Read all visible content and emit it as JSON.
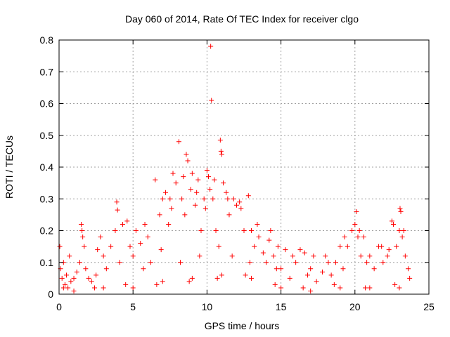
{
  "chart_data": {
    "type": "scatter",
    "title": "Day 060 of 2014, Rate Of TEC Index for receiver clgo",
    "xlabel": "GPS time / hours",
    "ylabel": "ROTI / TECUs",
    "xlim": [
      0,
      25
    ],
    "ylim": [
      0,
      0.8
    ],
    "xticks": [
      0,
      5,
      10,
      15,
      20,
      25
    ],
    "xtick_labels": [
      "0",
      "5",
      "10",
      "15",
      "20",
      "25"
    ],
    "yticks": [
      0,
      0.1,
      0.2,
      0.3,
      0.4,
      0.5,
      0.6,
      0.7,
      0.8
    ],
    "ytick_labels": [
      "0",
      "0.1",
      "0.2",
      "0.3",
      "0.4",
      "0.5",
      "0.6",
      "0.7",
      "0.8"
    ],
    "grid": true,
    "marker": "+",
    "marker_color": "#ff0000",
    "series": [
      {
        "name": "ROTI",
        "points": [
          [
            0.05,
            0.15
          ],
          [
            0.1,
            0.08
          ],
          [
            0.2,
            0.05
          ],
          [
            0.3,
            0.1
          ],
          [
            0.4,
            0.03
          ],
          [
            0.5,
            0.06
          ],
          [
            0.6,
            0.02
          ],
          [
            0.8,
            0.04
          ],
          [
            1.0,
            0.05
          ],
          [
            1.2,
            0.07
          ],
          [
            1.4,
            0.1
          ],
          [
            1.5,
            0.22
          ],
          [
            1.55,
            0.2
          ],
          [
            1.6,
            0.18
          ],
          [
            1.7,
            0.15
          ],
          [
            1.8,
            0.08
          ],
          [
            2.0,
            0.05
          ],
          [
            2.2,
            0.04
          ],
          [
            2.5,
            0.06
          ],
          [
            2.8,
            0.18
          ],
          [
            3.0,
            0.12
          ],
          [
            3.2,
            0.08
          ],
          [
            3.5,
            0.15
          ],
          [
            3.8,
            0.2
          ],
          [
            3.9,
            0.29
          ],
          [
            3.95,
            0.265
          ],
          [
            4.1,
            0.1
          ],
          [
            4.3,
            0.22
          ],
          [
            4.6,
            0.23
          ],
          [
            4.8,
            0.15
          ],
          [
            5.0,
            0.12
          ],
          [
            5.2,
            0.2
          ],
          [
            5.5,
            0.16
          ],
          [
            5.7,
            0.08
          ],
          [
            6.0,
            0.18
          ],
          [
            6.2,
            0.1
          ],
          [
            6.5,
            0.36
          ],
          [
            6.8,
            0.25
          ],
          [
            7.0,
            0.3
          ],
          [
            7.2,
            0.32
          ],
          [
            7.4,
            0.22
          ],
          [
            7.5,
            0.3
          ],
          [
            7.7,
            0.38
          ],
          [
            7.9,
            0.35
          ],
          [
            8.1,
            0.48
          ],
          [
            8.3,
            0.3
          ],
          [
            8.5,
            0.25
          ],
          [
            8.6,
            0.44
          ],
          [
            8.7,
            0.42
          ],
          [
            8.9,
            0.33
          ],
          [
            9.0,
            0.38
          ],
          [
            9.2,
            0.28
          ],
          [
            9.4,
            0.36
          ],
          [
            9.6,
            0.2
          ],
          [
            9.8,
            0.3
          ],
          [
            10.0,
            0.39
          ],
          [
            10.1,
            0.37
          ],
          [
            10.2,
            0.33
          ],
          [
            10.25,
            0.78
          ],
          [
            10.3,
            0.61
          ],
          [
            10.4,
            0.3
          ],
          [
            10.6,
            0.2
          ],
          [
            10.9,
            0.485
          ],
          [
            10.95,
            0.45
          ],
          [
            11.0,
            0.44
          ],
          [
            11.1,
            0.35
          ],
          [
            11.3,
            0.32
          ],
          [
            11.5,
            0.25
          ],
          [
            11.8,
            0.3
          ],
          [
            12.0,
            0.28
          ],
          [
            12.2,
            0.29
          ],
          [
            12.5,
            0.2
          ],
          [
            12.8,
            0.31
          ],
          [
            13.0,
            0.2
          ],
          [
            13.2,
            0.15
          ],
          [
            13.5,
            0.18
          ],
          [
            13.8,
            0.13
          ],
          [
            14.0,
            0.1
          ],
          [
            14.2,
            0.17
          ],
          [
            14.5,
            0.12
          ],
          [
            14.8,
            0.15
          ],
          [
            15.0,
            0.08
          ],
          [
            15.3,
            0.14
          ],
          [
            15.6,
            0.05
          ],
          [
            16.0,
            0.1
          ],
          [
            16.3,
            0.14
          ],
          [
            16.6,
            0.13
          ],
          [
            17.0,
            0.08
          ],
          [
            17.4,
            0.04
          ],
          [
            17.8,
            0.07
          ],
          [
            18.0,
            0.12
          ],
          [
            18.4,
            0.06
          ],
          [
            18.7,
            0.1
          ],
          [
            19.0,
            0.15
          ],
          [
            19.2,
            0.08
          ],
          [
            19.5,
            0.15
          ],
          [
            19.8,
            0.2
          ],
          [
            20.0,
            0.22
          ],
          [
            20.1,
            0.26
          ],
          [
            20.2,
            0.18
          ],
          [
            20.4,
            0.12
          ],
          [
            20.6,
            0.18
          ],
          [
            20.8,
            0.1
          ],
          [
            21.0,
            0.12
          ],
          [
            21.3,
            0.08
          ],
          [
            21.6,
            0.15
          ],
          [
            21.9,
            0.1
          ],
          [
            22.2,
            0.12
          ],
          [
            22.5,
            0.23
          ],
          [
            22.6,
            0.22
          ],
          [
            22.8,
            0.15
          ],
          [
            23.0,
            0.2
          ],
          [
            23.05,
            0.27
          ],
          [
            23.1,
            0.26
          ],
          [
            23.2,
            0.18
          ],
          [
            23.4,
            0.12
          ],
          [
            23.6,
            0.08
          ],
          [
            23.7,
            0.05
          ],
          [
            0.3,
            0.02
          ],
          [
            2.4,
            0.02
          ],
          [
            4.5,
            0.03
          ],
          [
            6.6,
            0.03
          ],
          [
            8.8,
            0.04
          ],
          [
            10.7,
            0.05
          ],
          [
            12.6,
            0.06
          ],
          [
            14.6,
            0.03
          ],
          [
            16.5,
            0.02
          ],
          [
            18.6,
            0.03
          ],
          [
            20.7,
            0.02
          ],
          [
            22.7,
            0.03
          ],
          [
            1.0,
            0.01
          ],
          [
            3.0,
            0.02
          ],
          [
            5.0,
            0.02
          ],
          [
            7.0,
            0.04
          ],
          [
            9.0,
            0.05
          ],
          [
            11.0,
            0.06
          ],
          [
            13.0,
            0.05
          ],
          [
            15.0,
            0.02
          ],
          [
            17.0,
            0.01
          ],
          [
            19.0,
            0.02
          ],
          [
            21.0,
            0.02
          ],
          [
            23.0,
            0.02
          ],
          [
            0.7,
            0.12
          ],
          [
            2.6,
            0.14
          ],
          [
            5.8,
            0.22
          ],
          [
            7.6,
            0.27
          ],
          [
            8.4,
            0.37
          ],
          [
            9.3,
            0.32
          ],
          [
            9.9,
            0.27
          ],
          [
            10.5,
            0.36
          ],
          [
            11.4,
            0.3
          ],
          [
            12.3,
            0.27
          ],
          [
            13.4,
            0.22
          ],
          [
            14.3,
            0.2
          ],
          [
            15.8,
            0.12
          ],
          [
            17.2,
            0.12
          ],
          [
            18.2,
            0.1
          ],
          [
            19.3,
            0.18
          ],
          [
            20.3,
            0.2
          ],
          [
            21.8,
            0.15
          ],
          [
            22.3,
            0.14
          ],
          [
            23.3,
            0.2
          ],
          [
            6.9,
            0.14
          ],
          [
            8.2,
            0.1
          ],
          [
            9.5,
            0.12
          ],
          [
            10.8,
            0.15
          ],
          [
            11.7,
            0.12
          ],
          [
            12.9,
            0.1
          ],
          [
            14.7,
            0.08
          ],
          [
            16.8,
            0.06
          ]
        ]
      }
    ]
  }
}
